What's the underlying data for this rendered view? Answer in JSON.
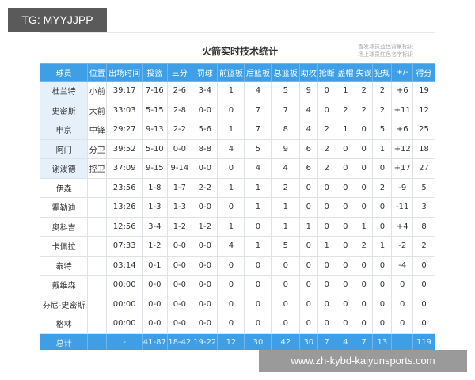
{
  "watermark_tag": "TG: MYYJJPP",
  "watermark_site": "www.zh-kybd-kaiyunsports.com",
  "title": "火箭实时技术统计",
  "notes": [
    "首发球员蓝色背景标识",
    "场上球员红色名字标识"
  ],
  "colors": {
    "header": "#3f9fe6",
    "starter_bg": "#e6f0fb"
  },
  "headers": [
    "球员",
    "位置",
    "出场时间",
    "投篮",
    "三分",
    "罚球",
    "前篮板",
    "后篮板",
    "总篮板",
    "助攻",
    "抢断",
    "盖帽",
    "失误",
    "犯规",
    "+/-",
    "得分"
  ],
  "rows": [
    [
      "杜兰特",
      "小前",
      "39:17",
      "7-16",
      "2-6",
      "3-4",
      "1",
      "4",
      "5",
      "9",
      "0",
      "1",
      "2",
      "2",
      "+6",
      "19"
    ],
    [
      "史密斯",
      "大前",
      "33:03",
      "5-15",
      "2-8",
      "0-0",
      "0",
      "7",
      "7",
      "4",
      "0",
      "2",
      "2",
      "2",
      "+11",
      "12"
    ],
    [
      "申京",
      "中锋",
      "29:27",
      "9-13",
      "2-2",
      "5-6",
      "1",
      "7",
      "8",
      "4",
      "2",
      "1",
      "0",
      "5",
      "+6",
      "25"
    ],
    [
      "阿门",
      "分卫",
      "39:52",
      "5-10",
      "0-0",
      "8-8",
      "4",
      "5",
      "9",
      "6",
      "2",
      "0",
      "0",
      "1",
      "+12",
      "18"
    ],
    [
      "谢泼德",
      "控卫",
      "37:09",
      "9-15",
      "9-14",
      "0-0",
      "0",
      "4",
      "4",
      "6",
      "2",
      "0",
      "0",
      "0",
      "+17",
      "27"
    ],
    [
      "伊森",
      "",
      "23:56",
      "1-8",
      "1-7",
      "2-2",
      "1",
      "1",
      "2",
      "0",
      "0",
      "0",
      "0",
      "2",
      "-9",
      "5"
    ],
    [
      "霍勒迪",
      "",
      "13:26",
      "1-3",
      "1-3",
      "0-0",
      "0",
      "1",
      "1",
      "0",
      "0",
      "0",
      "0",
      "0",
      "-11",
      "3"
    ],
    [
      "奥科吉",
      "",
      "12:56",
      "3-4",
      "1-2",
      "1-2",
      "1",
      "0",
      "1",
      "1",
      "0",
      "0",
      "1",
      "0",
      "+4",
      "8"
    ],
    [
      "卡佩拉",
      "",
      "07:33",
      "1-2",
      "0-0",
      "0-0",
      "4",
      "1",
      "5",
      "0",
      "1",
      "0",
      "2",
      "1",
      "-2",
      "2"
    ],
    [
      "泰特",
      "",
      "03:14",
      "0-1",
      "0-0",
      "0-0",
      "0",
      "0",
      "0",
      "0",
      "0",
      "0",
      "0",
      "0",
      "-4",
      "0"
    ],
    [
      "戴维森",
      "",
      "00:00",
      "0-0",
      "0-0",
      "0-0",
      "0",
      "0",
      "0",
      "0",
      "0",
      "0",
      "0",
      "0",
      "0",
      "0"
    ],
    [
      "芬尼-史密斯",
      "",
      "00:00",
      "0-0",
      "0-0",
      "0-0",
      "0",
      "0",
      "0",
      "0",
      "0",
      "0",
      "0",
      "0",
      "0",
      "0"
    ],
    [
      "格林",
      "",
      "00:00",
      "0-0",
      "0-0",
      "0-0",
      "0",
      "0",
      "0",
      "0",
      "0",
      "0",
      "0",
      "0",
      "0",
      "0"
    ]
  ],
  "total": [
    "总计",
    "",
    "-",
    "41-87",
    "18-42",
    "19-22",
    "12",
    "30",
    "42",
    "30",
    "7",
    "4",
    "7",
    "13",
    "",
    "119"
  ]
}
